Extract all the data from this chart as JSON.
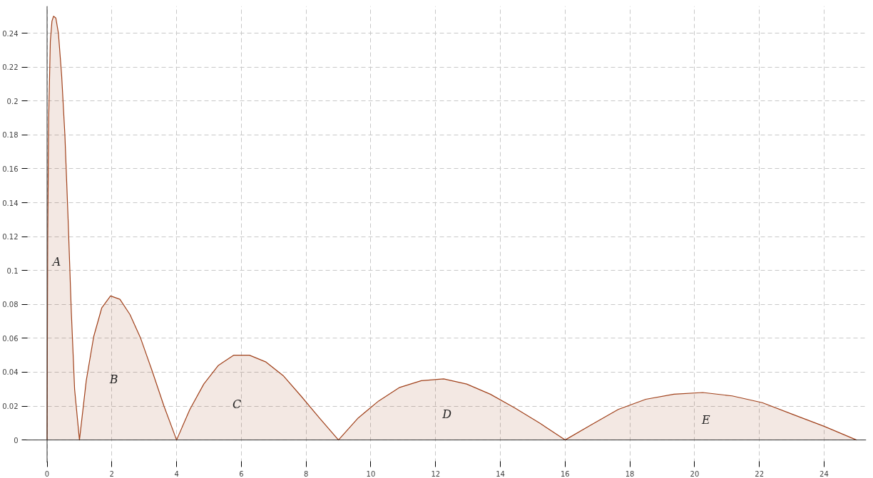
{
  "chart_data": {
    "type": "area",
    "x": [
      0,
      0.02,
      0.05,
      0.1,
      0.15,
      0.2,
      0.27,
      0.35,
      0.45,
      0.55,
      0.65,
      0.75,
      0.85,
      1.0,
      1.21,
      1.44,
      1.69,
      1.96,
      2.25,
      2.56,
      2.89,
      3.24,
      3.61,
      4,
      4.41,
      4.84,
      5.29,
      5.76,
      6.25,
      6.76,
      7.29,
      7.84,
      8.41,
      9,
      9.61,
      10.24,
      10.89,
      11.56,
      12.25,
      12.96,
      13.69,
      14.44,
      15.21,
      16,
      16.81,
      17.64,
      18.49,
      19.36,
      20.25,
      21.16,
      22.09,
      23.04,
      24.01,
      25
    ],
    "series": [
      {
        "color": "#a0401a",
        "values": [
          0,
          0.12,
          0.19,
          0.235,
          0.247,
          0.25,
          0.249,
          0.24,
          0.215,
          0.18,
          0.13,
          0.075,
          0.03,
          0,
          0.035,
          0.061,
          0.078,
          0.085,
          0.083,
          0.074,
          0.06,
          0.041,
          0.02,
          0,
          0.018,
          0.033,
          0.044,
          0.05,
          0.05,
          0.046,
          0.038,
          0.026,
          0.013,
          0,
          0.013,
          0.023,
          0.031,
          0.035,
          0.036,
          0.033,
          0.027,
          0.019,
          0.01,
          0,
          0.009,
          0.018,
          0.024,
          0.027,
          0.028,
          0.026,
          0.022,
          0.015,
          0.008,
          0
        ]
      }
    ],
    "xlim": [
      -0.65,
      25.3
    ],
    "ylim": [
      -0.0134,
      0.256
    ],
    "xticks": [
      0,
      2,
      4,
      6,
      8,
      10,
      12,
      14,
      16,
      18,
      20,
      22,
      24
    ],
    "yticks": [
      0,
      0.02,
      0.04,
      0.06,
      0.08,
      0.1,
      0.12,
      0.14,
      0.16,
      0.18,
      0.2,
      0.22,
      0.24
    ],
    "grid": true,
    "annotations": [
      "A",
      "B",
      "C",
      "D",
      "E"
    ]
  }
}
